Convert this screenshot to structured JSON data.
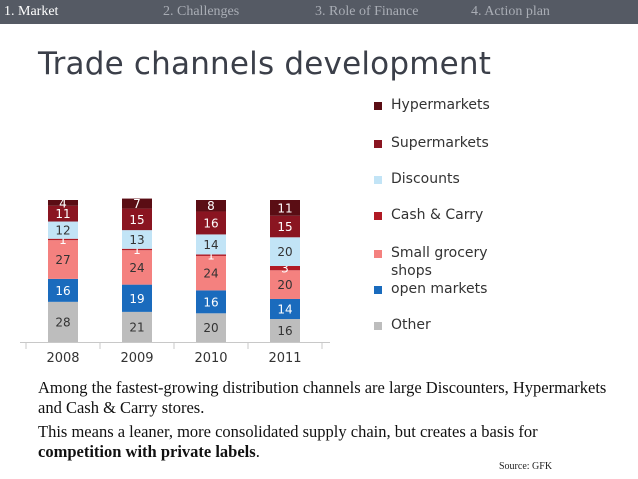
{
  "nav": {
    "tabs": [
      {
        "label": "1. Market",
        "active": true
      },
      {
        "label": "2. Challenges",
        "active": false
      },
      {
        "label": "3. Role of Finance",
        "active": false
      },
      {
        "label": "4. Action plan",
        "active": false
      }
    ]
  },
  "slide": {
    "title": "Trade channels development",
    "paragraph1": "Among the fastest-growing distribution channels are large Discounters, Hypermarkets and Cash & Carry stores.",
    "paragraph2_prefix": "This means a leaner, more consolidated supply chain, but creates a basis for ",
    "paragraph2_bold": "competition with private labels",
    "paragraph2_suffix": ".",
    "source": "Source: GFK"
  },
  "chart_data": {
    "type": "bar",
    "stacked": true,
    "categories": [
      "2008",
      "2009",
      "2010",
      "2011"
    ],
    "series": [
      {
        "name": "Other",
        "color": "#bdbdbd",
        "values": [
          28,
          21,
          20,
          16
        ]
      },
      {
        "name": "open markets",
        "color": "#1a6bbd",
        "values": [
          16,
          19,
          16,
          14
        ]
      },
      {
        "name": "Small grocery shops",
        "color": "#f4817f",
        "values": [
          27,
          24,
          24,
          20
        ]
      },
      {
        "name": "Cash & Carry",
        "color": "#b01a24",
        "values": [
          1,
          1,
          1,
          3
        ]
      },
      {
        "name": "Discounts",
        "color": "#c2e4f6",
        "values": [
          12,
          13,
          14,
          20
        ]
      },
      {
        "name": "Supermarkets",
        "color": "#8a1521",
        "values": [
          11,
          15,
          16,
          15
        ]
      },
      {
        "name": "Hypermarkets",
        "color": "#5a0d14",
        "values": [
          4,
          7,
          8,
          11
        ]
      }
    ],
    "legend": {
      "placement": "right",
      "order": [
        "Hypermarkets",
        "Supermarkets",
        "Discounts",
        "Cash & Carry",
        "Small grocery shops",
        "open markets",
        "Other"
      ],
      "labels": [
        "Hypermarkets",
        "Supermarkets",
        "Discounts",
        "Cash & Carry",
        "Small grocery\nshops",
        "open markets",
        "Other"
      ]
    },
    "title": "",
    "xlabel": "",
    "ylabel": "",
    "ylim": [
      0,
      100
    ],
    "grid": false
  }
}
